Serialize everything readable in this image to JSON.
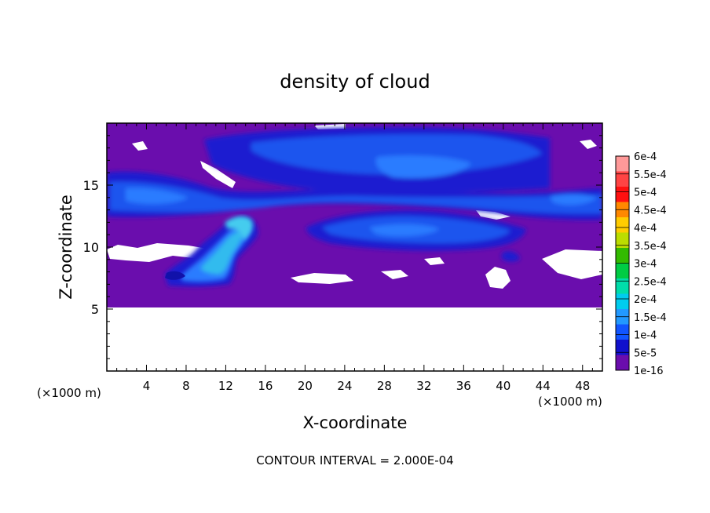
{
  "chart_data": {
    "type": "heatmap",
    "title": "density of cloud",
    "xlabel": "X-coordinate",
    "ylabel": "Z-coordinate",
    "x_unit_left": "(×1000 m)",
    "x_unit_right": "(×1000 m)",
    "footer": "CONTOUR INTERVAL = 2.000E-04",
    "xlim": [
      0,
      50
    ],
    "ylim": [
      0,
      20
    ],
    "x_ticks": [
      "4",
      "8",
      "12",
      "16",
      "20",
      "24",
      "28",
      "32",
      "36",
      "40",
      "44",
      "48"
    ],
    "x_tick_values": [
      4,
      8,
      12,
      16,
      20,
      24,
      28,
      32,
      36,
      40,
      44,
      48
    ],
    "y_ticks": [
      "5",
      "10",
      "15"
    ],
    "y_tick_values": [
      5,
      10,
      15
    ],
    "colorbar": {
      "labels": [
        "6e-4",
        "5.5e-4",
        "5e-4",
        "4.5e-4",
        "4e-4",
        "3.5e-4",
        "3e-4",
        "2.5e-4",
        "2e-4",
        "1.5e-4",
        "1e-4",
        "5e-5",
        "1e-16"
      ],
      "colors": [
        "#ff9999",
        "#ff4444",
        "#ff1010",
        "#ff8800",
        "#ffcc00",
        "#bbdd00",
        "#33bb00",
        "#00cc44",
        "#00ddaa",
        "#00ccee",
        "#2299ff",
        "#1155ff",
        "#1111cc",
        "#6a0dad"
      ]
    },
    "field": {
      "background_value": "1e-16",
      "cloud_base_z": 5.3,
      "cloud_top_z": 19.8,
      "upper_band": {
        "x": [
          0,
          50
        ],
        "z": [
          12.3,
          19.6
        ],
        "max_value": "1e-4"
      },
      "middle_band": {
        "x": [
          20,
          42
        ],
        "z": [
          10.5,
          13
        ],
        "max_value": "1e-4"
      },
      "plume": {
        "x": [
          6,
          15
        ],
        "z": [
          6.9,
          12.5
        ],
        "max_value": "1.5e-4"
      }
    }
  }
}
